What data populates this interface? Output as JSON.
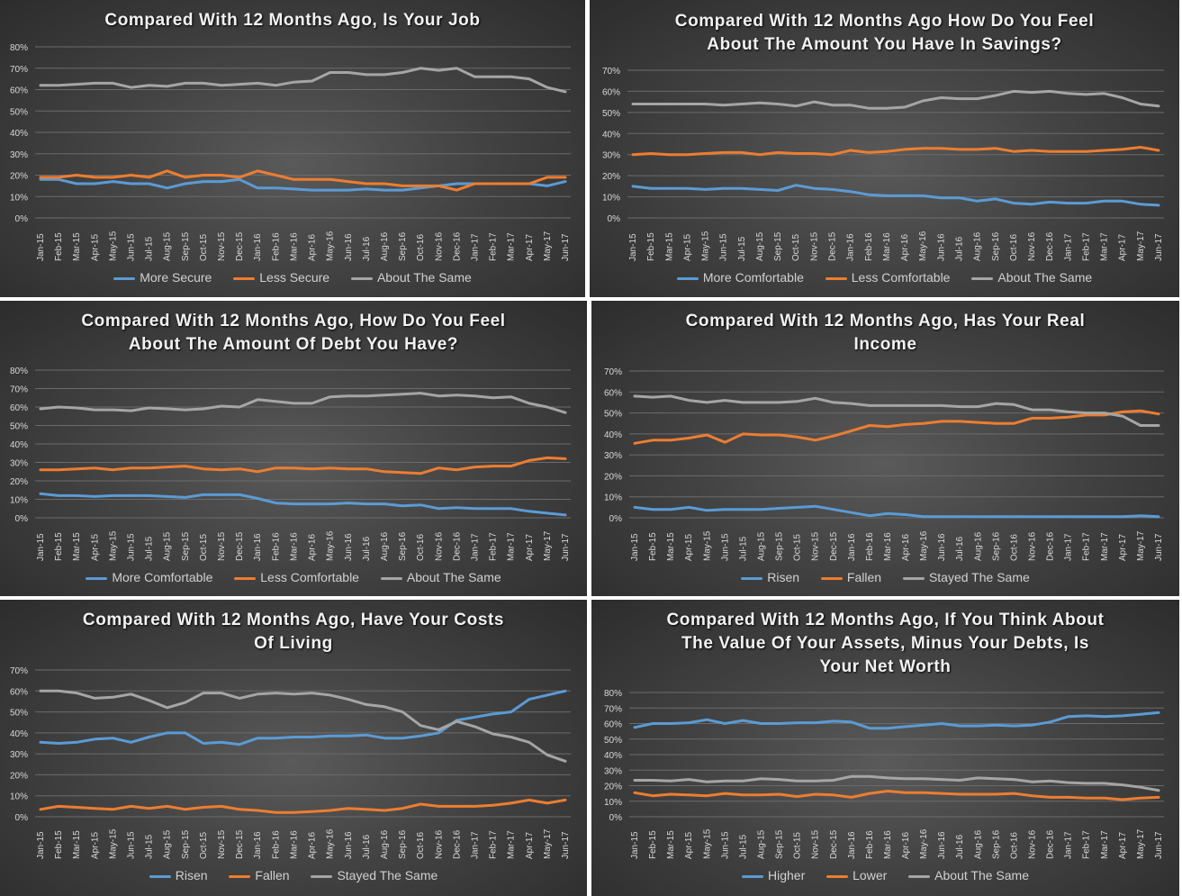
{
  "colors": {
    "series1": "#5b9bd5",
    "series2": "#ed7d31",
    "series3": "#a5a5a5",
    "grid": "#6b6b6b",
    "tick": "#d9d9d9"
  },
  "months": [
    "Jan-15",
    "Feb-15",
    "Mar-15",
    "Apr-15",
    "May-15",
    "Jun-15",
    "Jul-15",
    "Aug-15",
    "Sep-15",
    "Oct-15",
    "Nov-15",
    "Dec-15",
    "Jan-16",
    "Feb-16",
    "Mar-16",
    "Apr-16",
    "May-16",
    "Jun-16",
    "Jul-16",
    "Aug-16",
    "Sep-16",
    "Oct-16",
    "Nov-16",
    "Dec-16",
    "Jan-17",
    "Feb-17",
    "Mar-17",
    "Apr-17",
    "May-17",
    "Jun-17"
  ],
  "chart_data": [
    {
      "type": "line",
      "title_lines": [
        "Compared With 12 Months Ago, Is Your Job"
      ],
      "ylim": [
        0,
        80
      ],
      "y_ticks": [
        "0%",
        "10%",
        "20%",
        "30%",
        "40%",
        "50%",
        "60%",
        "70%",
        "80%"
      ],
      "series": [
        {
          "name": "More Secure",
          "values": [
            18,
            18,
            16,
            16,
            17,
            16,
            16,
            14,
            16,
            17,
            17,
            18,
            14,
            14,
            13.5,
            13,
            13,
            13,
            13.5,
            13,
            13,
            14,
            15,
            16,
            16,
            16,
            16,
            16,
            15,
            17
          ]
        },
        {
          "name": "Less Secure",
          "values": [
            19,
            19,
            20,
            19,
            19,
            20,
            19,
            22,
            19,
            20,
            20,
            19,
            22,
            20,
            18,
            18,
            18,
            17,
            16,
            16,
            15,
            15,
            15,
            13,
            16,
            16,
            16,
            16,
            19,
            19
          ]
        },
        {
          "name": "About The Same",
          "values": [
            62,
            62,
            62.5,
            63,
            63,
            61,
            62,
            61.5,
            63,
            63,
            62,
            62.5,
            63,
            62,
            63.5,
            64,
            68,
            68,
            67,
            67,
            68,
            70,
            69,
            70,
            66,
            66,
            66,
            65,
            61,
            59
          ]
        }
      ]
    },
    {
      "type": "line",
      "title_lines": [
        "Compared With 12 Months Ago How Do You Feel",
        "About The Amount You Have In Savings?"
      ],
      "ylim": [
        0,
        70
      ],
      "y_ticks": [
        "0%",
        "10%",
        "20%",
        "30%",
        "40%",
        "50%",
        "60%",
        "70%"
      ],
      "series": [
        {
          "name": "More Comfortable",
          "values": [
            15,
            14,
            14,
            14,
            13.5,
            14,
            14,
            13.5,
            13,
            15.5,
            14,
            13.5,
            12.5,
            11,
            10.5,
            10.5,
            10.5,
            9.5,
            9.5,
            8,
            9,
            7,
            6.5,
            7.5,
            7,
            7,
            8,
            8,
            6.5,
            6
          ]
        },
        {
          "name": "Less Comfortable",
          "values": [
            30,
            30.5,
            30,
            30,
            30.5,
            31,
            31,
            30,
            31,
            30.5,
            30.5,
            30,
            32,
            31,
            31.5,
            32.5,
            33,
            33,
            32.5,
            32.5,
            33,
            31.5,
            32,
            31.5,
            31.5,
            31.5,
            32,
            32.5,
            33.5,
            32
          ]
        },
        {
          "name": "About The Same",
          "values": [
            54,
            54,
            54,
            54,
            54,
            53.5,
            54,
            54.5,
            54,
            53,
            55,
            53.5,
            53.5,
            52,
            52,
            52.5,
            55.5,
            57,
            56.5,
            56.5,
            58,
            60,
            59.5,
            60,
            59,
            58.5,
            59,
            57,
            54,
            53
          ]
        }
      ]
    },
    {
      "type": "line",
      "title_lines": [
        "Compared With 12 Months Ago, How Do You Feel",
        "About The Amount Of Debt You Have?"
      ],
      "ylim": [
        0,
        80
      ],
      "y_ticks": [
        "0%",
        "10%",
        "20%",
        "30%",
        "40%",
        "50%",
        "60%",
        "70%",
        "80%"
      ],
      "series": [
        {
          "name": "More Comfortable",
          "values": [
            13,
            12,
            12,
            11.5,
            12,
            12,
            12,
            11.5,
            11,
            12.5,
            12.5,
            12.5,
            10.5,
            8,
            7.5,
            7.5,
            7.5,
            8,
            7.5,
            7.5,
            6.5,
            7,
            5,
            5.5,
            5,
            5,
            5,
            3.5,
            2.5,
            1.5
          ]
        },
        {
          "name": "Less Comfortable",
          "values": [
            26,
            26,
            26.5,
            27,
            26,
            27,
            27,
            27.5,
            28,
            26.5,
            26,
            26.5,
            25,
            27,
            27,
            26.5,
            27,
            26.5,
            26.5,
            25,
            24.5,
            24,
            27,
            26,
            27.5,
            28,
            28,
            31,
            32.5,
            32
          ]
        },
        {
          "name": "About The Same",
          "values": [
            59,
            60,
            59.5,
            58.5,
            58.5,
            58,
            59.5,
            59,
            58.5,
            59,
            60.5,
            60,
            64,
            63,
            62,
            62,
            65.5,
            66,
            66,
            66.5,
            67,
            67.5,
            66,
            66.5,
            66,
            65,
            65.5,
            62,
            60,
            57
          ]
        }
      ]
    },
    {
      "type": "line",
      "title_lines": [
        "Compared With 12 Months Ago, Has Your Real",
        "Income"
      ],
      "ylim": [
        0,
        70
      ],
      "y_ticks": [
        "0%",
        "10%",
        "20%",
        "30%",
        "40%",
        "50%",
        "60%",
        "70%"
      ],
      "series": [
        {
          "name": "Risen",
          "values": [
            5,
            4,
            4,
            5,
            3.5,
            4,
            4,
            4,
            4.5,
            5,
            5.5,
            4,
            2.5,
            1,
            2,
            1.5,
            0.5,
            0.5,
            0.5,
            0.5,
            0.5,
            0.5,
            0.5,
            0.5,
            0.5,
            0.5,
            0.5,
            0.5,
            1,
            0.5
          ]
        },
        {
          "name": "Fallen",
          "values": [
            35.5,
            37,
            37,
            38,
            39.5,
            36,
            40,
            39.5,
            39.5,
            38.5,
            37,
            39,
            41.5,
            44,
            43.5,
            44.5,
            45,
            46,
            46,
            45.5,
            45,
            45,
            47.5,
            47.5,
            48,
            49,
            49,
            50.5,
            51,
            49.5
          ]
        },
        {
          "name": "Stayed The Same",
          "values": [
            58,
            57.5,
            58,
            56,
            55,
            56,
            55,
            55,
            55,
            55.5,
            57,
            55,
            54.5,
            53.5,
            53.5,
            53.5,
            53.5,
            53.5,
            53,
            53,
            54.5,
            54,
            51.5,
            51.5,
            50.5,
            50,
            50,
            48.5,
            44,
            44
          ]
        }
      ]
    },
    {
      "type": "line",
      "title_lines": [
        "Compared With 12 Months Ago, Have Your Costs",
        "Of Living"
      ],
      "ylim": [
        0,
        70
      ],
      "y_ticks": [
        "0%",
        "10%",
        "20%",
        "30%",
        "40%",
        "50%",
        "60%",
        "70%"
      ],
      "series": [
        {
          "name": "Risen",
          "values": [
            35.5,
            35,
            35.5,
            37,
            37.5,
            35.5,
            38,
            40,
            40,
            35,
            35.5,
            34.5,
            37.5,
            37.5,
            38,
            38,
            38.5,
            38.5,
            39,
            37.5,
            37.5,
            38.5,
            40,
            46,
            47.5,
            49,
            50,
            56,
            58,
            60
          ]
        },
        {
          "name": "Fallen",
          "values": [
            3.5,
            5,
            4.5,
            4,
            3.5,
            5,
            4,
            5,
            3.5,
            4.5,
            5,
            3.5,
            3,
            2,
            2,
            2.5,
            3,
            4,
            3.5,
            3,
            4,
            6,
            5,
            5,
            5,
            5.5,
            6.5,
            8,
            6.5,
            8
          ]
        },
        {
          "name": "Stayed The Same",
          "values": [
            60,
            60,
            59,
            56.5,
            57,
            58.5,
            55.5,
            52,
            54.5,
            59,
            59,
            56.5,
            58.5,
            59,
            58.5,
            59,
            58,
            56,
            53.5,
            52.5,
            50,
            43.5,
            41.5,
            45.5,
            43,
            39.5,
            38,
            35.5,
            29.5,
            26.5
          ]
        }
      ]
    },
    {
      "type": "line",
      "title_lines": [
        "Compared With 12 Months Ago, If You Think About",
        "The Value Of Your Assets, Minus Your Debts, Is",
        "Your Net Worth"
      ],
      "ylim": [
        0,
        80
      ],
      "y_ticks": [
        "0%",
        "10%",
        "20%",
        "30%",
        "40%",
        "50%",
        "60%",
        "70%",
        "80%"
      ],
      "series": [
        {
          "name": "Higher",
          "values": [
            57.5,
            60,
            60,
            60.5,
            62.5,
            60,
            62,
            60,
            60,
            60.5,
            60.5,
            61.5,
            61,
            57,
            57,
            58,
            59,
            60,
            58.5,
            58.5,
            59,
            58.5,
            59,
            61,
            64.5,
            65,
            64.5,
            65,
            66,
            67
          ]
        },
        {
          "name": "Lower",
          "values": [
            15.5,
            13.5,
            14.5,
            14,
            13.5,
            15,
            14,
            14,
            14.5,
            13,
            14.5,
            14,
            12.5,
            15,
            16.5,
            15.5,
            15.5,
            15,
            14.5,
            14.5,
            14.5,
            15,
            13.5,
            12.5,
            12.5,
            12,
            12,
            11,
            12,
            12.5
          ]
        },
        {
          "name": "About The Same",
          "values": [
            23.5,
            23.5,
            23,
            24,
            22.5,
            23,
            23,
            24.5,
            24,
            23,
            23,
            23.5,
            26,
            26,
            25,
            24.5,
            24.5,
            24,
            23.5,
            25,
            24.5,
            24,
            22.5,
            23,
            22,
            21.5,
            21.5,
            20.5,
            19,
            17
          ]
        }
      ]
    }
  ]
}
